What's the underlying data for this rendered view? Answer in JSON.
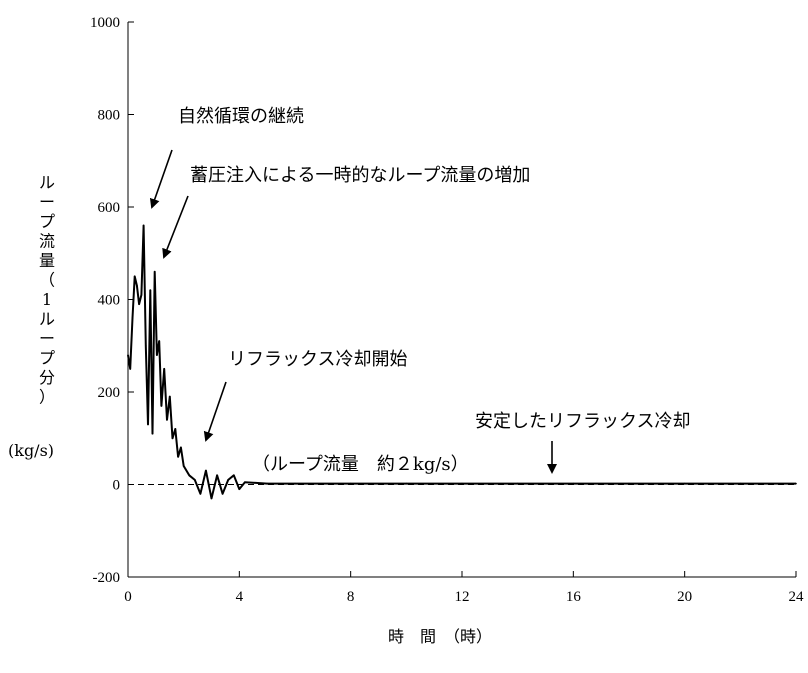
{
  "chart_data": {
    "type": "line",
    "title": "",
    "xlabel": "時　間　（時）",
    "ylabel_chars": [
      "ル",
      "ー",
      "プ",
      "流",
      "量",
      "（",
      "1",
      "ル",
      "ー",
      "プ",
      "分",
      "）"
    ],
    "ylabel_unit": "(kg/s)",
    "xlim": [
      0,
      24
    ],
    "ylim": [
      -200,
      1000
    ],
    "x_ticks": [
      0,
      4,
      8,
      12,
      16,
      20,
      24
    ],
    "y_ticks": [
      -200,
      0,
      200,
      400,
      600,
      800,
      1000
    ],
    "zero_reference_line": "dashed",
    "grid": false,
    "series": [
      {
        "color": "#000000",
        "x": [
          0.0,
          0.08,
          0.16,
          0.24,
          0.32,
          0.4,
          0.48,
          0.56,
          0.64,
          0.72,
          0.8,
          0.88,
          0.96,
          1.04,
          1.12,
          1.2,
          1.3,
          1.4,
          1.5,
          1.6,
          1.7,
          1.8,
          1.9,
          2.0,
          2.2,
          2.4,
          2.6,
          2.8,
          3.0,
          3.2,
          3.4,
          3.6,
          3.8,
          4.0,
          4.2,
          5,
          6,
          8,
          10,
          12,
          14,
          16,
          18,
          20,
          22,
          24
        ],
        "y": [
          280,
          250,
          360,
          450,
          430,
          390,
          410,
          560,
          300,
          130,
          420,
          110,
          460,
          280,
          310,
          170,
          250,
          140,
          190,
          100,
          120,
          60,
          80,
          40,
          20,
          10,
          -20,
          30,
          -30,
          20,
          -20,
          10,
          20,
          -10,
          5,
          2,
          2,
          2,
          2,
          2,
          2,
          2,
          2,
          2,
          2,
          2
        ]
      }
    ],
    "annotations": [
      {
        "text": "自然循環の継続"
      },
      {
        "text": "蓄圧注入による一時的なループ流量の増加"
      },
      {
        "text": "リフラックス冷却開始"
      },
      {
        "text": "安定したリフラックス冷却"
      },
      {
        "text": "（ループ流量　約２kg/s）"
      }
    ]
  }
}
